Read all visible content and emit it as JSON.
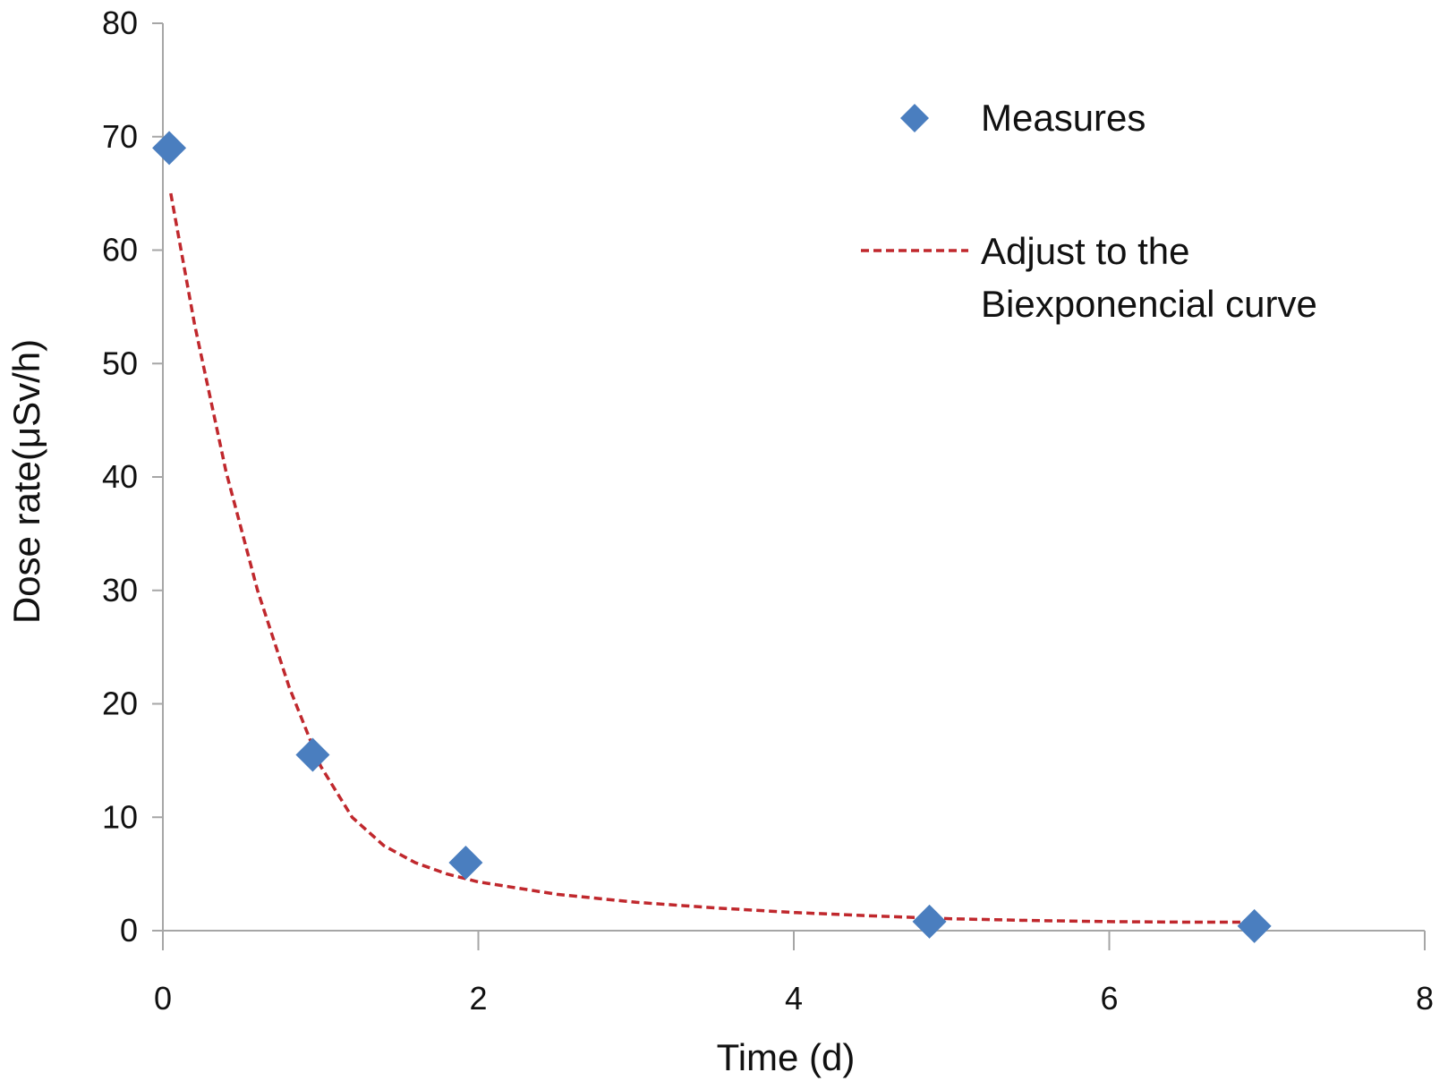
{
  "chart_data": {
    "type": "scatter",
    "title": "",
    "xlabel": "Time (d)",
    "ylabel": "Dose rate(μSv/h)",
    "xlim": [
      0,
      8
    ],
    "ylim": [
      0,
      80
    ],
    "xticks": [
      0,
      2,
      4,
      6,
      8
    ],
    "yticks": [
      0,
      10,
      20,
      30,
      40,
      50,
      60,
      70,
      80
    ],
    "grid": false,
    "legend_position": "top-right",
    "series": [
      {
        "name": "Measures",
        "kind": "scatter",
        "marker": "diamond",
        "color": "#4a7ebf",
        "x": [
          0.04,
          0.95,
          1.92,
          4.86,
          6.92
        ],
        "y": [
          69.0,
          15.5,
          6.0,
          0.8,
          0.4
        ]
      },
      {
        "name": "Adjust to the Biexponencial curve",
        "name_lines": [
          "Adjust to the",
          "Biexponencial curve"
        ],
        "kind": "line",
        "style": "dashed",
        "color": "#c0282d",
        "x": [
          0.05,
          0.2,
          0.4,
          0.6,
          0.8,
          1.0,
          1.2,
          1.4,
          1.6,
          1.8,
          2.0,
          2.5,
          3.0,
          3.5,
          4.0,
          4.5,
          5.0,
          5.5,
          6.0,
          6.5,
          6.92
        ],
        "y": [
          65.0,
          53.5,
          40.5,
          30.0,
          21.5,
          14.5,
          10.0,
          7.5,
          6.0,
          5.0,
          4.3,
          3.2,
          2.5,
          2.0,
          1.6,
          1.3,
          1.05,
          0.9,
          0.8,
          0.75,
          0.75
        ]
      }
    ]
  }
}
